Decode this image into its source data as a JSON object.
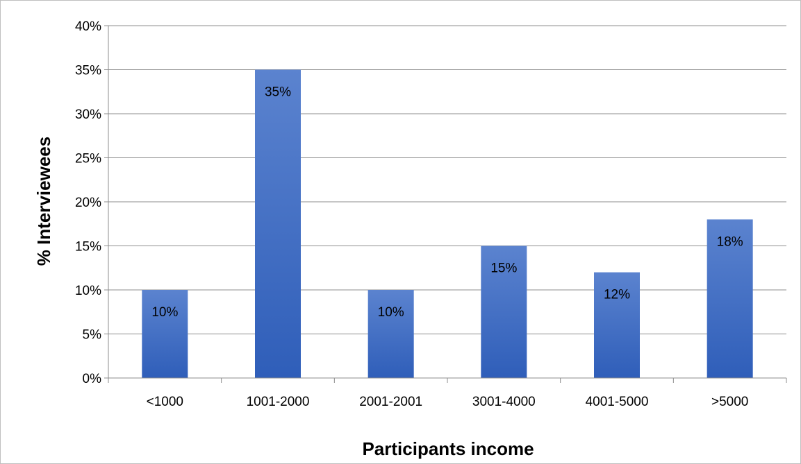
{
  "chart_data": {
    "type": "bar",
    "title": "",
    "xlabel": "Participants income",
    "ylabel": "% Interviewees",
    "categories": [
      "<1000",
      "1001-2000",
      "2001-2001",
      "3001-4000",
      "4001-5000",
      ">5000"
    ],
    "values": [
      10,
      35,
      10,
      15,
      12,
      18
    ],
    "data_labels": [
      "10%",
      "35%",
      "10%",
      "15%",
      "12%",
      "18%"
    ],
    "y_ticks": [
      "0%",
      "5%",
      "10%",
      "15%",
      "20%",
      "25%",
      "30%",
      "35%",
      "40%"
    ],
    "ylim": [
      0,
      40
    ],
    "grid": true,
    "legend": "none",
    "colors": {
      "bar_top": "#5b83cf",
      "bar_bottom": "#2f5eb9",
      "grid": "#8c8c8c"
    }
  }
}
